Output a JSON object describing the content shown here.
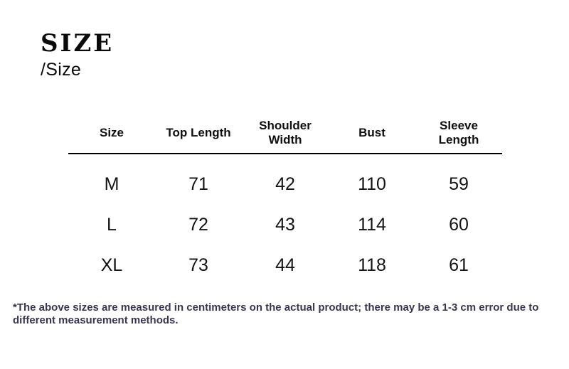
{
  "title": {
    "main": "SIZE",
    "sub": "/Size"
  },
  "chart_data": {
    "type": "table",
    "title": "SIZE /Size",
    "columns": [
      "Size",
      "Top Length",
      "Shoulder Width",
      "Bust",
      "Sleeve Length"
    ],
    "rows": [
      [
        "M",
        "71",
        "42",
        "110",
        "59"
      ],
      [
        "L",
        "72",
        "43",
        "114",
        "60"
      ],
      [
        "XL",
        "73",
        "44",
        "118",
        "61"
      ]
    ],
    "units": "centimeters",
    "footnote": "*The above sizes are measured in centimeters on the actual product; there may be a 1-3 cm error due to different measurement methods."
  },
  "colors": {
    "background": "#ffffff",
    "heading_text": "#0a0a0a",
    "table_text": "#141414",
    "header_rule": "#000000",
    "footnote_text": "#3a3550"
  }
}
